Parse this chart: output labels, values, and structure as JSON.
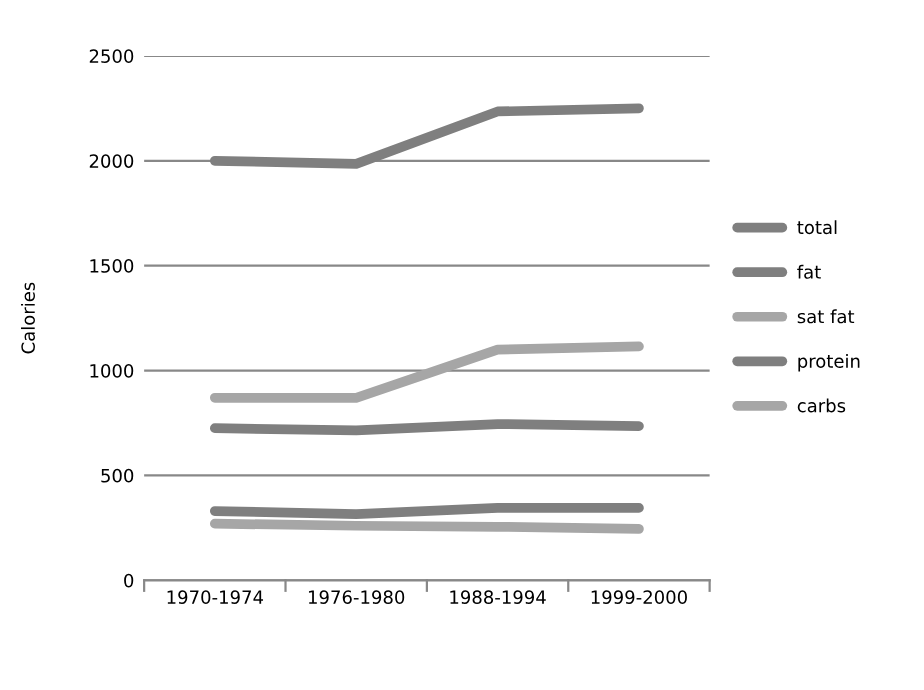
{
  "chart_data": {
    "type": "line",
    "ylabel": "Calories",
    "categories": [
      "1970-1974",
      "1976-1980",
      "1988-1994",
      "1999-2000"
    ],
    "series": [
      {
        "name": "total",
        "color": "#7f7f7f",
        "values": [
          2000,
          1985,
          2235,
          2250
        ]
      },
      {
        "name": "fat",
        "color": "#7f7f7f",
        "values": [
          725,
          715,
          745,
          735
        ]
      },
      {
        "name": "sat fat",
        "color": "#a6a6a6",
        "values": [
          270,
          260,
          255,
          245
        ]
      },
      {
        "name": "protein",
        "color": "#7f7f7f",
        "values": [
          330,
          315,
          345,
          345
        ]
      },
      {
        "name": "carbs",
        "color": "#a6a6a6",
        "values": [
          870,
          870,
          1100,
          1115
        ]
      }
    ],
    "ylim": [
      0,
      2500
    ],
    "yticks": [
      0,
      500,
      1000,
      1500,
      2000,
      2500
    ],
    "grid": "y",
    "legend": "right",
    "marker": "none",
    "line_style": "solid"
  }
}
